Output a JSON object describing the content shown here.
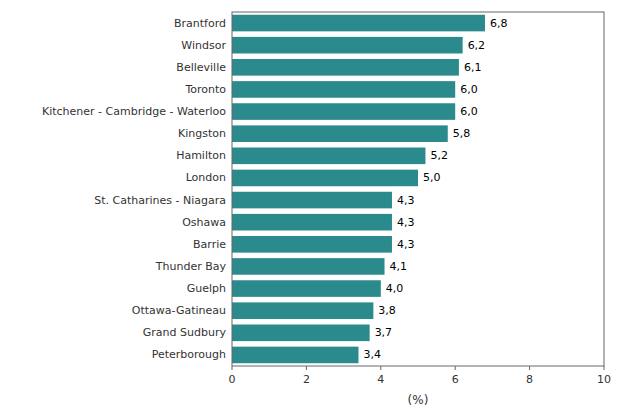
{
  "chart_data": {
    "type": "bar",
    "orientation": "horizontal",
    "categories": [
      "Peterborough",
      "Grand Sudbury",
      "Ottawa-Gatineau",
      "Guelph",
      "Thunder Bay",
      "Barrie",
      "Oshawa",
      "St. Catharines - Niagara",
      "London",
      "Hamilton",
      "Kingston",
      "Kitchener - Cambridge - Waterloo",
      "Toronto",
      "Belleville",
      "Windsor",
      "Brantford"
    ],
    "values": [
      3.4,
      3.7,
      3.8,
      4.0,
      4.1,
      4.3,
      4.3,
      4.3,
      5.0,
      5.2,
      5.8,
      6.0,
      6.0,
      6.1,
      6.2,
      6.8
    ],
    "value_labels": [
      "3,4",
      "3,7",
      "3,8",
      "4,0",
      "4,1",
      "4,3",
      "4,3",
      "4,3",
      "5,0",
      "5,2",
      "5,8",
      "6,0",
      "6,0",
      "6,1",
      "6,2",
      "6,8"
    ],
    "data_labels": true,
    "color": "#2a8a8c",
    "xlabel": "(%)",
    "xlim": [
      0,
      10
    ],
    "xticks": [
      0,
      2,
      4,
      6,
      8,
      10
    ],
    "grid": false
  }
}
